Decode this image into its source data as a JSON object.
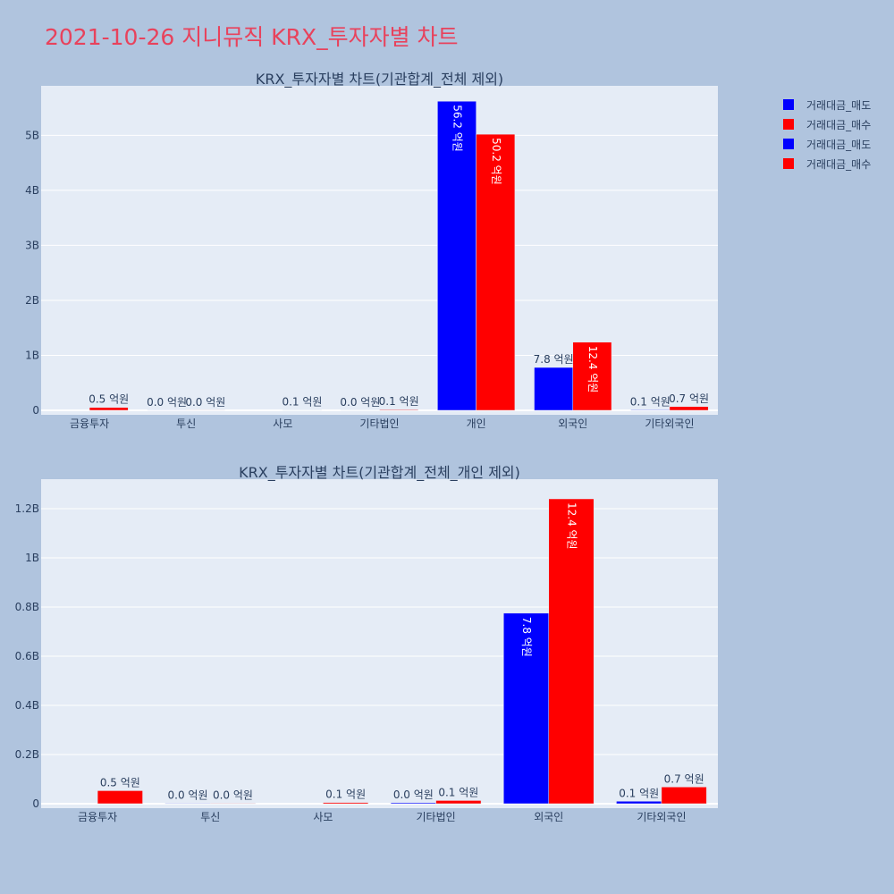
{
  "title": "2021-10-26 지니뮤직 KRX_투자자별 차트",
  "legend": [
    {
      "label": "거래대금_매도",
      "color": "#0000ff"
    },
    {
      "label": "거래대금_매수",
      "color": "#ff0000"
    },
    {
      "label": "거래대금_매도",
      "color": "#0000ff"
    },
    {
      "label": "거래대금_매수",
      "color": "#ff0000"
    }
  ],
  "chart_data": [
    {
      "type": "bar",
      "title": "KRX_투자자별 차트(기관합계_전체 제외)",
      "categories": [
        "금융투자",
        "투신",
        "사모",
        "기타법인",
        "개인",
        "외국인",
        "기타외국인"
      ],
      "series": [
        {
          "name": "거래대금_매도",
          "color": "#0000ff",
          "values": [
            0,
            0.002,
            0,
            0.004,
            5.62,
            0.78,
            0.01
          ],
          "labels": [
            "",
            "0.0 억원",
            "",
            "0.0 억원",
            "56.2 억원",
            "7.8 억원",
            "0.1 억원"
          ]
        },
        {
          "name": "거래대금_매수",
          "color": "#ff0000",
          "values": [
            0.053,
            0.002,
            0.005,
            0.013,
            5.02,
            1.24,
            0.068
          ],
          "labels": [
            "0.5 억원",
            "0.0 억원",
            "0.1 억원",
            "0.1 억원",
            "50.2 억원",
            "12.4 억원",
            "0.7 억원"
          ]
        }
      ],
      "ylim": [
        0,
        5.9
      ],
      "yticks": [
        0,
        1,
        2,
        3,
        4,
        5
      ],
      "yticklabels": [
        "0",
        "1B",
        "2B",
        "3B",
        "4B",
        "5B"
      ],
      "grid": true
    },
    {
      "type": "bar",
      "title": "KRX_투자자별 차트(기관합계_전체_개인 제외)",
      "categories": [
        "금융투자",
        "투신",
        "사모",
        "기타법인",
        "외국인",
        "기타외국인"
      ],
      "series": [
        {
          "name": "거래대금_매도",
          "color": "#0000ff",
          "values": [
            0,
            0.002,
            0,
            0.004,
            0.775,
            0.01
          ],
          "labels": [
            "",
            "0.0 억원",
            "",
            "0.0 억원",
            "7.8 억원",
            "0.1 억원"
          ]
        },
        {
          "name": "거래대금_매수",
          "color": "#ff0000",
          "values": [
            0.053,
            0.002,
            0.005,
            0.013,
            1.24,
            0.068
          ],
          "labels": [
            "0.5 억원",
            "0.0 억원",
            "0.1 억원",
            "0.1 억원",
            "12.4 억원",
            "0.7 억원"
          ]
        }
      ],
      "ylim": [
        0,
        1.32
      ],
      "yticks": [
        0,
        0.2,
        0.4,
        0.6,
        0.8,
        1,
        1.2
      ],
      "yticklabels": [
        "0",
        "0.2B",
        "0.4B",
        "0.6B",
        "0.8B",
        "1B",
        "1.2B"
      ],
      "grid": true
    }
  ]
}
